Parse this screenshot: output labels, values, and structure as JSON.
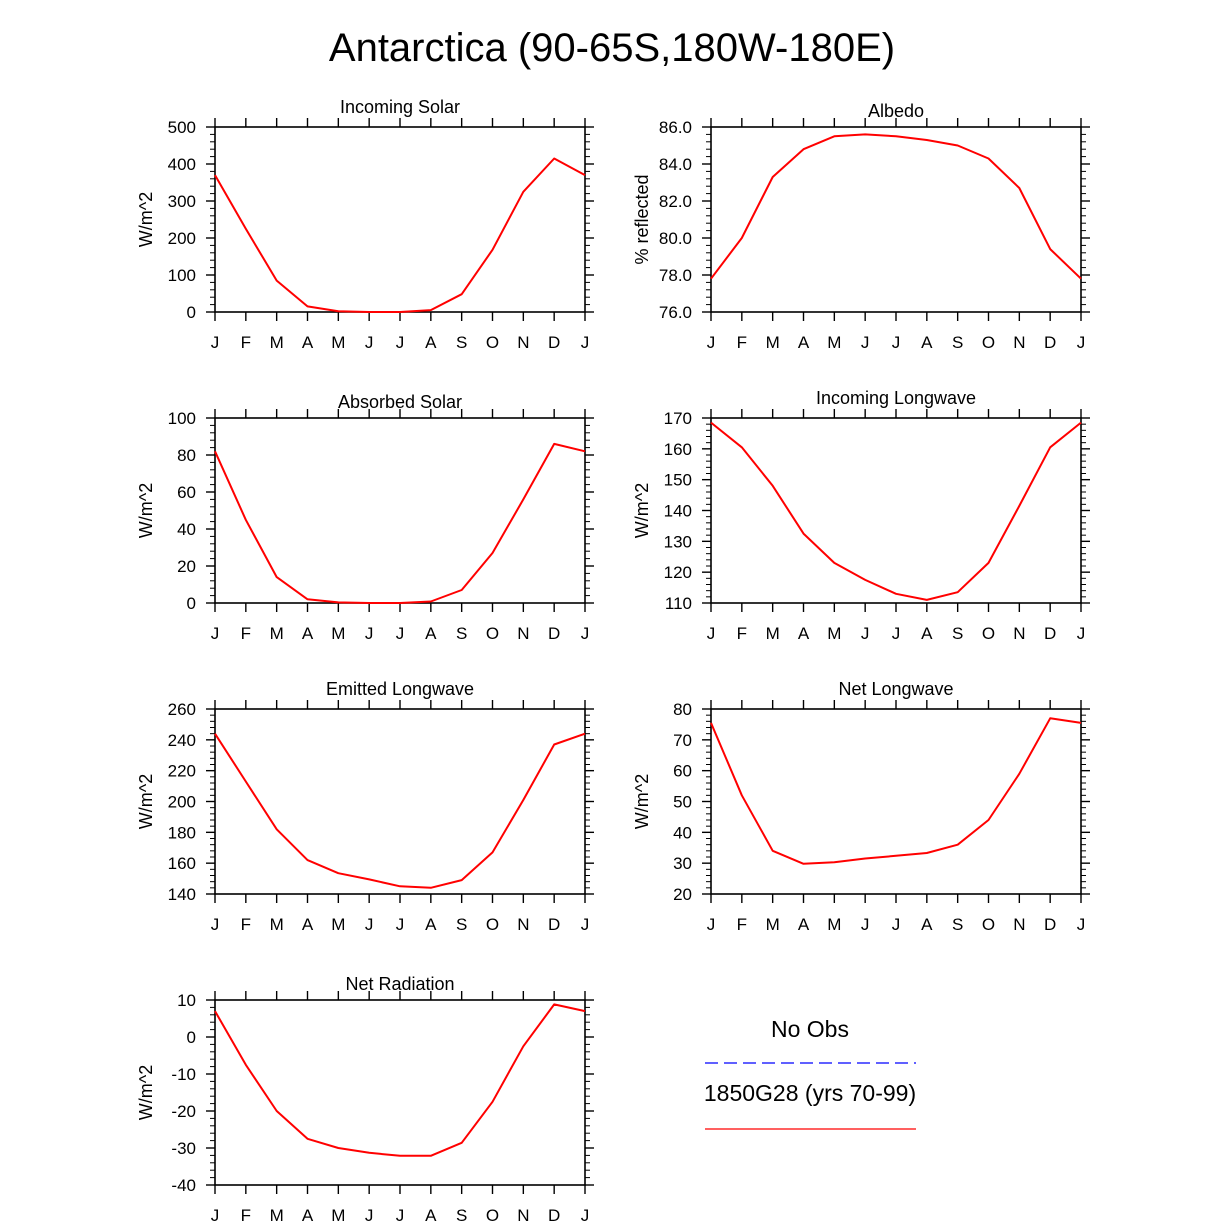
{
  "title": "Antarctica (90-65S,180W-180E)",
  "months": [
    "J",
    "F",
    "M",
    "A",
    "M",
    "J",
    "J",
    "A",
    "S",
    "O",
    "N",
    "D",
    "J"
  ],
  "colors": {
    "model": "#ff0000",
    "obs": "#0000ff",
    "axis": "#000000"
  },
  "chart_data": [
    {
      "type": "line",
      "title": "Incoming Solar",
      "ylabel": "W/m^2",
      "ylim": [
        0,
        500
      ],
      "yticks": [
        0,
        100,
        200,
        300,
        400,
        500
      ],
      "ytick_labels": [
        "0",
        "100",
        "200",
        "300",
        "400",
        "500"
      ],
      "series": [
        {
          "name": "1850G28 (yrs 70-99)",
          "values": [
            370,
            225,
            85,
            15,
            2,
            0,
            0,
            5,
            48,
            168,
            325,
            415,
            370
          ]
        }
      ]
    },
    {
      "type": "line",
      "title": "Albedo",
      "ylabel": "% reflected",
      "ylim": [
        76,
        86
      ],
      "yticks": [
        76,
        78,
        80,
        82,
        84,
        86
      ],
      "ytick_labels": [
        "76.0",
        "78.0",
        "80.0",
        "82.0",
        "84.0",
        "86.0"
      ],
      "series": [
        {
          "name": "1850G28 (yrs 70-99)",
          "values": [
            77.8,
            80.0,
            83.3,
            84.8,
            85.5,
            85.6,
            85.5,
            85.3,
            85.0,
            84.3,
            82.7,
            79.4,
            77.8
          ]
        }
      ]
    },
    {
      "type": "line",
      "title": "Absorbed Solar",
      "ylabel": "W/m^2",
      "ylim": [
        0,
        100
      ],
      "yticks": [
        0,
        20,
        40,
        60,
        80,
        100
      ],
      "ytick_labels": [
        "0",
        "20",
        "40",
        "60",
        "80",
        "100"
      ],
      "series": [
        {
          "name": "1850G28 (yrs 70-99)",
          "values": [
            82,
            45,
            14,
            2,
            0.3,
            0,
            0,
            0.8,
            7,
            27,
            56,
            86,
            82
          ]
        }
      ]
    },
    {
      "type": "line",
      "title": "Incoming Longwave",
      "ylabel": "W/m^2",
      "ylim": [
        110,
        170
      ],
      "yticks": [
        110,
        120,
        130,
        140,
        150,
        160,
        170
      ],
      "ytick_labels": [
        "110",
        "120",
        "130",
        "140",
        "150",
        "160",
        "170"
      ],
      "series": [
        {
          "name": "1850G28 (yrs 70-99)",
          "values": [
            168.5,
            160.5,
            148,
            132.5,
            123,
            117.5,
            113,
            111,
            113.5,
            123,
            141.5,
            160.5,
            168.5
          ]
        }
      ]
    },
    {
      "type": "line",
      "title": "Emitted Longwave",
      "ylabel": "W/m^2",
      "ylim": [
        140,
        260
      ],
      "yticks": [
        140,
        160,
        180,
        200,
        220,
        240,
        260
      ],
      "ytick_labels": [
        "140",
        "160",
        "180",
        "200",
        "220",
        "240",
        "260"
      ],
      "series": [
        {
          "name": "1850G28 (yrs 70-99)",
          "values": [
            244,
            213,
            182,
            162,
            153.5,
            149.5,
            145,
            144,
            149,
            167,
            201,
            237,
            244
          ]
        }
      ]
    },
    {
      "type": "line",
      "title": "Net Longwave",
      "ylabel": "W/m^2",
      "ylim": [
        20,
        80
      ],
      "yticks": [
        20,
        30,
        40,
        50,
        60,
        70,
        80
      ],
      "ytick_labels": [
        "20",
        "30",
        "40",
        "50",
        "60",
        "70",
        "80"
      ],
      "series": [
        {
          "name": "1850G28 (yrs 70-99)",
          "values": [
            75.5,
            52,
            34,
            29.8,
            30.3,
            31.5,
            32.4,
            33.3,
            36,
            44,
            59,
            77,
            75.5
          ]
        }
      ]
    },
    {
      "type": "line",
      "title": "Net Radiation",
      "ylabel": "W/m^2",
      "ylim": [
        -40,
        10
      ],
      "yticks": [
        -40,
        -30,
        -20,
        -10,
        0,
        10
      ],
      "ytick_labels": [
        "-40",
        "-30",
        "-20",
        "-10",
        "0",
        "10"
      ],
      "series": [
        {
          "name": "1850G28 (yrs 70-99)",
          "values": [
            7,
            -7.5,
            -20,
            -27.5,
            -30,
            -31.3,
            -32.1,
            -32.1,
            -28.6,
            -17.5,
            -2.5,
            8.8,
            7
          ]
        }
      ]
    }
  ],
  "legend": {
    "obs_label": "No Obs",
    "model_label": "1850G28 (yrs 70-99)"
  }
}
